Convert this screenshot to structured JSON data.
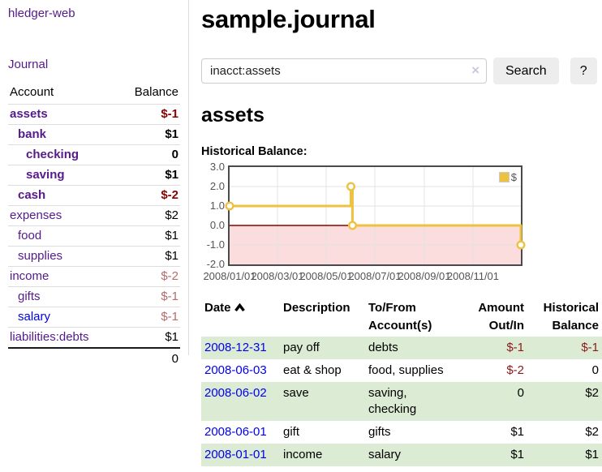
{
  "sidebar": {
    "app_title": "hledger-web",
    "journal_link": "Journal",
    "table": {
      "headers": [
        "Account",
        "Balance"
      ],
      "rows": [
        {
          "account": "assets",
          "indent": 0,
          "bold": true,
          "balance": "$-1",
          "tone": "neg-strong",
          "link": "purple"
        },
        {
          "account": "bank",
          "indent": 1,
          "bold": true,
          "balance": "$1",
          "tone": "",
          "link": "purple"
        },
        {
          "account": "checking",
          "indent": 2,
          "bold": true,
          "balance": "0",
          "tone": "",
          "link": "purple"
        },
        {
          "account": "saving",
          "indent": 2,
          "bold": true,
          "balance": "$1",
          "tone": "",
          "link": "purple"
        },
        {
          "account": "cash",
          "indent": 1,
          "bold": true,
          "balance": "$-2",
          "tone": "neg-strong",
          "link": "purple"
        },
        {
          "account": "expenses",
          "indent": 0,
          "bold": false,
          "balance": "$2",
          "tone": "",
          "link": "purple"
        },
        {
          "account": "food",
          "indent": 1,
          "bold": false,
          "balance": "$1",
          "tone": "",
          "link": "purple"
        },
        {
          "account": "supplies",
          "indent": 1,
          "bold": false,
          "balance": "$1",
          "tone": "",
          "link": "purple"
        },
        {
          "account": "income",
          "indent": 0,
          "bold": false,
          "balance": "$-2",
          "tone": "neg-soft",
          "link": "purple"
        },
        {
          "account": "gifts",
          "indent": 1,
          "bold": false,
          "balance": "$-1",
          "tone": "neg-soft",
          "link": "purple"
        },
        {
          "account": "salary",
          "indent": 1,
          "bold": false,
          "balance": "$-1",
          "tone": "neg-soft",
          "link": "blue"
        },
        {
          "account": "liabilities:debts",
          "indent": 0,
          "bold": false,
          "balance": "$1",
          "tone": "",
          "link": "purple"
        }
      ],
      "total": "0"
    }
  },
  "main": {
    "title": "sample.journal",
    "search": {
      "value": "inacct:assets",
      "clear_icon": "×",
      "button": "Search",
      "help_button": "?"
    },
    "account_heading": "assets",
    "chart_label": "Historical Balance:"
  },
  "chart_data": {
    "type": "line",
    "title": "Historical Balance:",
    "x_domain": [
      "2008-01-01",
      "2008-12-31"
    ],
    "ylim": [
      -2.0,
      3.0
    ],
    "yticks": [
      3.0,
      2.0,
      1.0,
      0.0,
      -1.0,
      -2.0
    ],
    "xticks": [
      "2008/01/01",
      "2008/03/01",
      "2008/05/01",
      "2008/07/01",
      "2008/09/01",
      "2008/11/01"
    ],
    "grid": true,
    "legend": {
      "label": "$",
      "position": "top-right"
    },
    "series": [
      {
        "name": "$",
        "color": "#edc240",
        "step": true,
        "points": [
          [
            "2008-01-01",
            1
          ],
          [
            "2008-06-01",
            2
          ],
          [
            "2008-06-03",
            0
          ],
          [
            "2008-12-31",
            -1
          ]
        ]
      }
    ],
    "negative_region_color": "#fbdddd",
    "zero_line_color": "#8b0000"
  },
  "register": {
    "headers": [
      [
        "Date",
        ""
      ],
      [
        "Description",
        ""
      ],
      [
        "To/From",
        "Account(s)"
      ],
      [
        "Amount",
        "Out/In"
      ],
      [
        "Historical",
        "Balance"
      ]
    ],
    "sort_icon": "chevron-up",
    "rows": [
      {
        "date": "2008-12-31",
        "description": "pay off",
        "accounts": "debts",
        "amount": "$-1",
        "amount_neg": true,
        "balance": "$-1",
        "balance_neg": true,
        "highlight": true
      },
      {
        "date": "2008-06-03",
        "description": "eat & shop",
        "accounts": "food, supplies",
        "amount": "$-2",
        "amount_neg": true,
        "balance": "0",
        "balance_neg": false,
        "highlight": false
      },
      {
        "date": "2008-06-02",
        "description": "save",
        "accounts": "saving, checking",
        "amount": "0",
        "amount_neg": false,
        "balance": "$2",
        "balance_neg": false,
        "highlight": true
      },
      {
        "date": "2008-06-01",
        "description": "gift",
        "accounts": "gifts",
        "amount": "$1",
        "amount_neg": false,
        "balance": "$2",
        "balance_neg": false,
        "highlight": false
      },
      {
        "date": "2008-01-01",
        "description": "income",
        "accounts": "salary",
        "amount": "$1",
        "amount_neg": false,
        "balance": "$1",
        "balance_neg": false,
        "highlight": true
      }
    ]
  },
  "colors": {
    "link_purple": "#551a8b",
    "link_blue": "#0000ee",
    "negative_strong": "#8b0000",
    "negative_soft": "#b36b6b",
    "table_negative": "#8b1a1a",
    "row_highlight_green": "#dcecd4",
    "series_gold": "#edc240",
    "chart_negative_fill": "#fbdddd",
    "chart_zero_line": "#8b0000"
  }
}
